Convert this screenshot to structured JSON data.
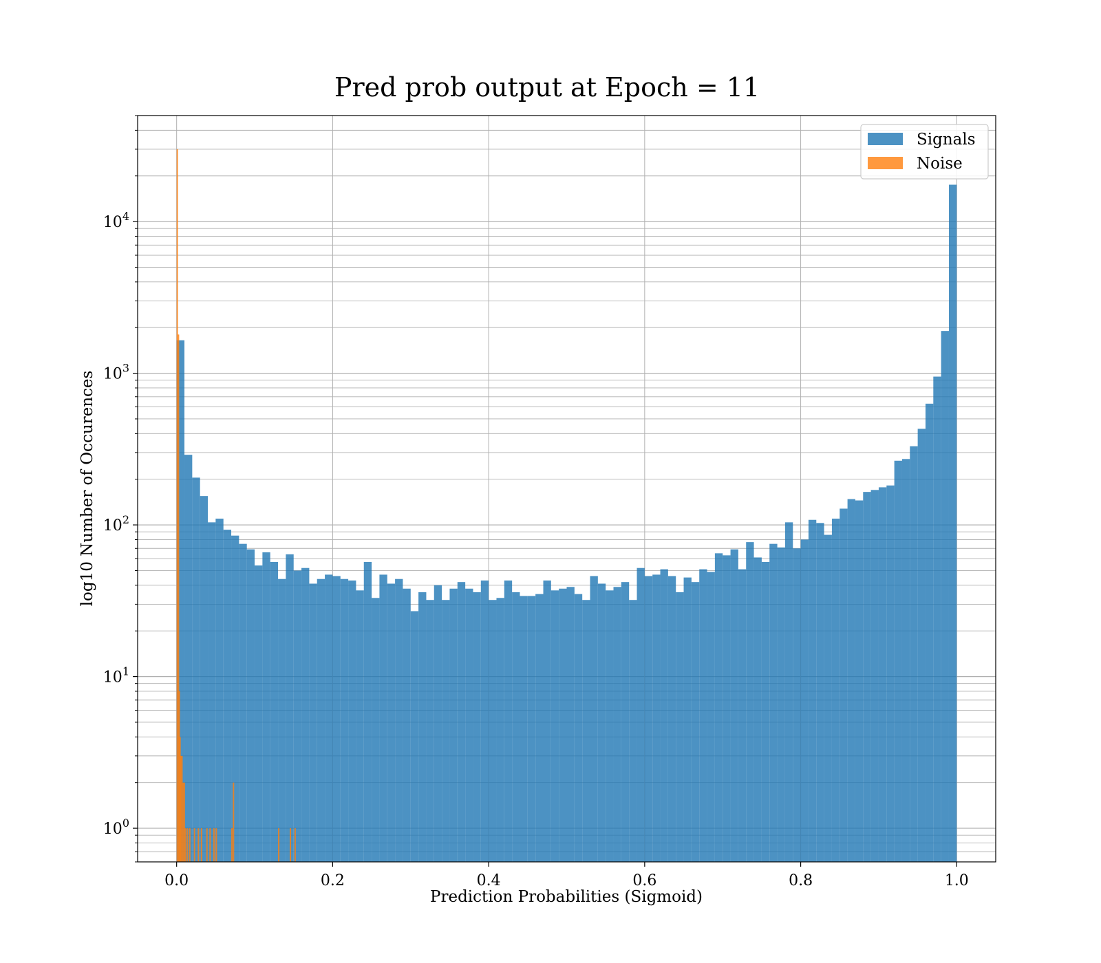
{
  "chart_data": {
    "type": "bar",
    "title": "Pred prob output at Epoch = 11",
    "xlabel": "Prediction Probabilities (Sigmoid)",
    "ylabel": "log10 Number of Occurences",
    "xlim": [
      -0.05,
      1.05
    ],
    "ylim": [
      0.6,
      50000
    ],
    "yscale": "log",
    "grid": true,
    "legend_position": "top-right",
    "x_ticks": [
      {
        "value": 0.0,
        "label": "0.0"
      },
      {
        "value": 0.2,
        "label": "0.2"
      },
      {
        "value": 0.4,
        "label": "0.4"
      },
      {
        "value": 0.6,
        "label": "0.6"
      },
      {
        "value": 0.8,
        "label": "0.8"
      },
      {
        "value": 1.0,
        "label": "1.0"
      }
    ],
    "y_ticks": [
      {
        "value": 1,
        "base": "10",
        "exp": "0"
      },
      {
        "value": 10,
        "base": "10",
        "exp": "1"
      },
      {
        "value": 100,
        "base": "10",
        "exp": "2"
      },
      {
        "value": 1000,
        "base": "10",
        "exp": "3"
      },
      {
        "value": 10000,
        "base": "10",
        "exp": "4"
      }
    ],
    "series": [
      {
        "name": "Signals",
        "color": "#1f77b4",
        "bin_start": 0.0,
        "bin_width": 0.01,
        "values": [
          1650,
          290,
          205,
          155,
          104,
          110,
          93,
          85,
          75,
          69,
          54,
          66,
          57,
          44,
          64,
          50,
          52,
          41,
          44,
          47,
          46,
          44,
          43,
          37,
          57,
          33,
          47,
          41,
          44,
          38,
          27,
          36,
          32,
          40,
          32,
          38,
          42,
          38,
          36,
          43,
          32,
          33,
          43,
          36,
          34,
          34,
          35,
          43,
          37,
          38,
          39,
          35,
          32,
          46,
          41,
          37,
          39,
          42,
          32,
          52,
          46,
          47,
          51,
          46,
          36,
          45,
          42,
          51,
          49,
          65,
          63,
          69,
          51,
          77,
          61,
          57,
          75,
          71,
          104,
          70,
          80,
          108,
          103,
          86,
          110,
          128,
          148,
          145,
          165,
          170,
          177,
          182,
          265,
          272,
          330,
          430,
          630,
          950,
          1900,
          17500
        ]
      },
      {
        "name": "Noise",
        "color": "#ff7f0e",
        "points": [
          {
            "x": 0.0,
            "count": 30000
          },
          {
            "x": 0.0015,
            "count": 1800
          },
          {
            "x": 0.0025,
            "count": 8
          },
          {
            "x": 0.0035,
            "count": 4
          },
          {
            "x": 0.0045,
            "count": 3
          },
          {
            "x": 0.006,
            "count": 3
          },
          {
            "x": 0.0075,
            "count": 2
          },
          {
            "x": 0.009,
            "count": 2
          },
          {
            "x": 0.0105,
            "count": 1
          },
          {
            "x": 0.013,
            "count": 1
          },
          {
            "x": 0.016,
            "count": 1
          },
          {
            "x": 0.022,
            "count": 1
          },
          {
            "x": 0.027,
            "count": 1
          },
          {
            "x": 0.031,
            "count": 1
          },
          {
            "x": 0.038,
            "count": 1
          },
          {
            "x": 0.042,
            "count": 1
          },
          {
            "x": 0.047,
            "count": 1
          },
          {
            "x": 0.05,
            "count": 1
          },
          {
            "x": 0.07,
            "count": 1
          },
          {
            "x": 0.072,
            "count": 2
          },
          {
            "x": 0.13,
            "count": 1
          },
          {
            "x": 0.145,
            "count": 1
          },
          {
            "x": 0.151,
            "count": 1
          }
        ]
      }
    ]
  }
}
